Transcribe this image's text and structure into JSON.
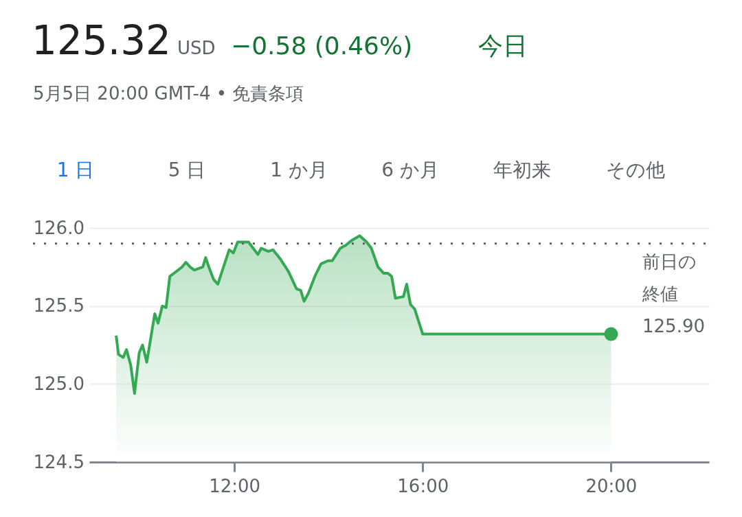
{
  "chart_data": {
    "type": "area",
    "title": "125.32",
    "subtitle": "5月5日 20:00 GMT-4 • 免責条項",
    "annotations": [
      "USD",
      "−0.58 (0.46%)",
      "今日",
      "1 日",
      "5 日",
      "1 か月",
      "6 か月",
      "年初来",
      "その他"
    ],
    "x": [
      9.49,
      9.54,
      9.64,
      9.71,
      9.8,
      9.88,
      9.98,
      10.05,
      10.14,
      10.31,
      10.38,
      10.47,
      10.55,
      10.63,
      10.72,
      10.89,
      10.97,
      11.06,
      11.15,
      11.33,
      11.39,
      11.47,
      11.56,
      11.65,
      11.89,
      11.98,
      12.07,
      12.3,
      12.5,
      12.57,
      12.72,
      12.82,
      12.98,
      13.15,
      13.32,
      13.41,
      13.48,
      13.57,
      13.71,
      13.84,
      13.99,
      14.08,
      14.25,
      14.37,
      14.49,
      14.66,
      14.81,
      14.91,
      15.05,
      15.17,
      15.26,
      15.34,
      15.42,
      15.59,
      15.66,
      15.74,
      15.83,
      16.0,
      20.0
    ],
    "series": [
      {
        "color": "#34a853",
        "values": [
          125.31,
          125.19,
          125.17,
          125.22,
          125.12,
          124.94,
          125.2,
          125.25,
          125.14,
          125.45,
          125.39,
          125.5,
          125.49,
          125.69,
          125.71,
          125.75,
          125.78,
          125.75,
          125.73,
          125.75,
          125.81,
          125.74,
          125.67,
          125.64,
          125.86,
          125.84,
          125.91,
          125.91,
          125.83,
          125.87,
          125.85,
          125.86,
          125.8,
          125.72,
          125.61,
          125.6,
          125.53,
          125.58,
          125.69,
          125.77,
          125.79,
          125.79,
          125.87,
          125.89,
          125.92,
          125.95,
          125.91,
          125.87,
          125.75,
          125.71,
          125.71,
          125.69,
          125.55,
          125.56,
          125.64,
          125.51,
          125.48,
          125.32,
          125.32
        ]
      },
      {
        "type": "scatter",
        "color": "#34a853",
        "marker": "circle",
        "x": [
          20.0
        ],
        "values": [
          125.32
        ]
      }
    ],
    "xlim": [
      8.92,
      22.08
    ],
    "xticks": [
      {
        "value": 12,
        "label": "12:00"
      },
      {
        "value": 16,
        "label": "16:00"
      },
      {
        "value": 20,
        "label": "20:00"
      }
    ],
    "ylim": [
      124.5,
      126.0
    ],
    "yticks": [
      {
        "value": 124.5,
        "label": "124.5"
      },
      {
        "value": 125.0,
        "label": "125.0"
      },
      {
        "value": 125.5,
        "label": "125.5"
      },
      {
        "value": 126.0,
        "label": "126.0"
      }
    ],
    "ref_lines": [
      {
        "axis": "y",
        "value": 125.9,
        "label": "前日の終値 125.90",
        "color": "#5f6368",
        "line_style": "dotted"
      }
    ],
    "grid": "y"
  }
}
